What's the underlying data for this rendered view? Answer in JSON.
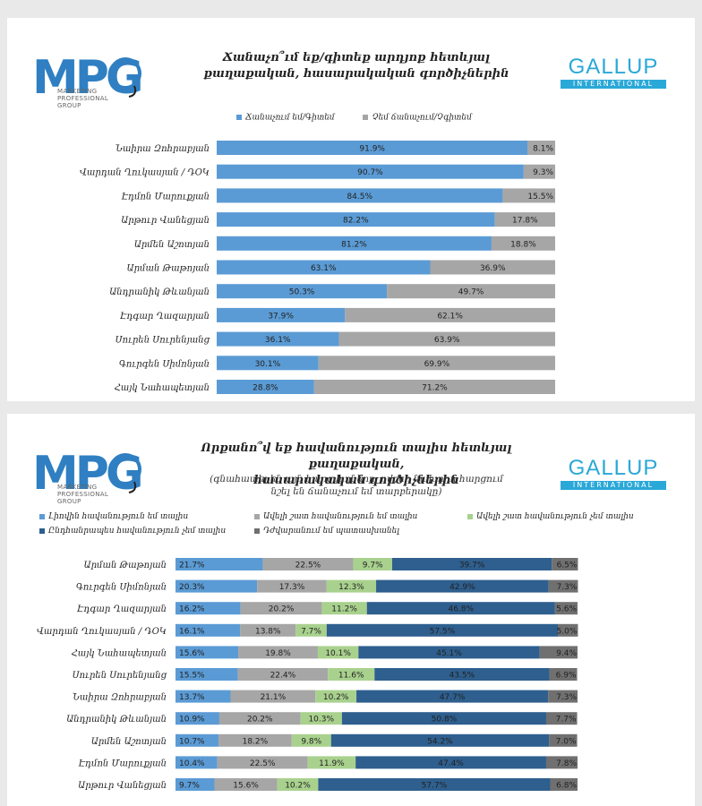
{
  "brand": {
    "mpg_letters": "MPG",
    "mpg_tagline": [
      "MARKETING",
      "PROFESSIONAL",
      "GROUP"
    ],
    "gallup_name": "GALLUP",
    "gallup_sub": "INTERNATIONAL"
  },
  "colors": {
    "blue": "#5b9bd5",
    "gray": "#a6a6a6",
    "light_green": "#a9d18e",
    "dark_blue": "#2e5f8e",
    "dark_gray": "#707070",
    "highlight_red": "#e0202a"
  },
  "chart_data": [
    {
      "type": "bar",
      "stacked": true,
      "orientation": "horizontal",
      "title_lines": [
        "Ճանաչո՞ւմ եք/գիտեք արդյոք հետևյալ",
        "քաղաքական, հասարակական գործիչներին"
      ],
      "legend": [
        "Ճանաչում եմ/Գիտեմ",
        "Չեմ ճանաչում/Չգիտեմ"
      ],
      "legend_position": "top",
      "categories": [
        "Նաիրա Զոհրաբյան",
        "Վարդան Ղուկասյան / ԴՕԿ",
        "Էդմոն Մարուքյան",
        "Արթուր Վանեցյան",
        "Արմեն Աշոտյան",
        "Արման Թաթոյան",
        "Անդրանիկ Թևանյան",
        "Էդգար Ղազարյան",
        "Սուրեն Սուրենյանց",
        "Գուրգեն Սիմոնյան",
        "Հայկ Նահապետյան"
      ],
      "series": [
        {
          "name": "Ճանաչում եմ/Գիտեմ",
          "values": [
            91.9,
            90.7,
            84.5,
            82.2,
            81.2,
            63.1,
            50.3,
            37.9,
            36.1,
            30.1,
            28.8
          ]
        },
        {
          "name": "Չեմ ճանաչում/Չգիտեմ",
          "values": [
            8.1,
            9.3,
            15.5,
            17.8,
            18.8,
            36.9,
            49.7,
            62.1,
            63.9,
            69.9,
            71.2
          ]
        }
      ],
      "labels": [
        [
          "91.9%",
          "90.7%",
          "84.5%",
          "82.2%",
          "81.2%",
          "63.1%",
          "50.3%",
          "37.9%",
          "36.1%",
          "30.1%",
          "28.8%"
        ],
        [
          "8.1%",
          "9.3%",
          "15.5%",
          "17.8%",
          "18.8%",
          "36.9%",
          "49.7%",
          "62.1%",
          "63.9%",
          "69.9%",
          "71.2%"
        ]
      ],
      "highlighted_labels": [
        [
          0,
          0
        ],
        [
          0,
          1
        ]
      ],
      "xlim": [
        0,
        100
      ]
    },
    {
      "type": "bar",
      "stacked": true,
      "orientation": "horizontal",
      "title_lines": [
        "Որքանո՞վ եք հավանություն տալիս հետևյալ քաղաքական,",
        "հասարակական գործիչներին"
      ],
      "subtitle_lines": [
        "(գնահատել են այն հարցվողները, ովքեր նախորդ հարցում",
        "նշել են ճանաչում եմ տարբերակը)"
      ],
      "legend": [
        "Լիովին հավանություն եմ տալիս",
        "Ավելի շատ հավանություն եմ տալիս",
        "Ավելի շատ հավանություն չեմ տալիս",
        "Ընդհանրապես հավանություն չեմ տալիս",
        "Դժվարանում եմ պատասխանել"
      ],
      "legend_position": "top",
      "categories": [
        "Արման Թաթոյան",
        "Գուրգեն Սիմոնյան",
        "Էդգար Ղազարյան",
        "Վարդան Ղուկասյան / ԴՕԿ",
        "Հայկ Նահապետյան",
        "Սուրեն Սուրենյանց",
        "Նաիրա Զոհրաբյան",
        "Անդրանիկ Թևանյան",
        "Արմեն Աշոտյան",
        "Էդմոն Մարուքյան",
        "Արթուր Վանեցյան"
      ],
      "series": [
        {
          "name": "Լիովին հավանություն եմ տալիս",
          "values": [
            21.7,
            20.3,
            16.2,
            16.1,
            15.6,
            15.5,
            13.7,
            10.9,
            10.7,
            10.4,
            9.7
          ]
        },
        {
          "name": "Ավելի շատ հավանություն եմ տալիս",
          "values": [
            22.5,
            17.3,
            20.2,
            13.8,
            19.8,
            22.4,
            21.1,
            20.2,
            18.2,
            22.5,
            15.6
          ]
        },
        {
          "name": "Ավելի շատ հավանություն չեմ տալիս",
          "values": [
            9.7,
            12.3,
            11.2,
            7.7,
            10.1,
            11.6,
            10.2,
            10.3,
            9.8,
            11.9,
            10.2
          ]
        },
        {
          "name": "Ընդհանրապես հավանություն չեմ տալիս",
          "values": [
            39.7,
            42.9,
            46.8,
            57.5,
            45.1,
            43.5,
            47.7,
            50.8,
            54.2,
            47.4,
            57.7
          ]
        },
        {
          "name": "Դժվարանում եմ պատասխանել",
          "values": [
            6.5,
            7.3,
            5.6,
            5.0,
            9.4,
            6.9,
            7.3,
            7.7,
            7.0,
            7.8,
            6.8
          ]
        }
      ],
      "labels": [
        [
          "21.7%",
          "20.3%",
          "16.2%",
          "16.1%",
          "15.6%",
          "15.5%",
          "13.7%",
          "10.9%",
          "10.7%",
          "10.4%",
          "9.7%"
        ],
        [
          "22.5%",
          "17.3%",
          "20.2%",
          "13.8%",
          "19.8%",
          "22.4%",
          "21.1%",
          "20.2%",
          "18.2%",
          "22.5%",
          "15.6%"
        ],
        [
          "9.7%",
          "12.3%",
          "11.2%",
          "7.7%",
          "10.1%",
          "11.6%",
          "10.2%",
          "10.3%",
          "9.8%",
          "11.9%",
          "10.2%"
        ],
        [
          "39.7%",
          "42.9%",
          "46.8%",
          "57.5%",
          "45.1%",
          "43.5%",
          "47.7%",
          "50.8%",
          "54.2%",
          "47.4%",
          "57.7%"
        ],
        [
          "6.5%",
          "7.3%",
          "5.6%",
          "5.0%",
          "9.4%",
          "6.9%",
          "7.3%",
          "7.7%",
          "7.0%",
          "7.8%",
          "6.8%"
        ]
      ],
      "xlim": [
        0,
        100
      ]
    }
  ]
}
